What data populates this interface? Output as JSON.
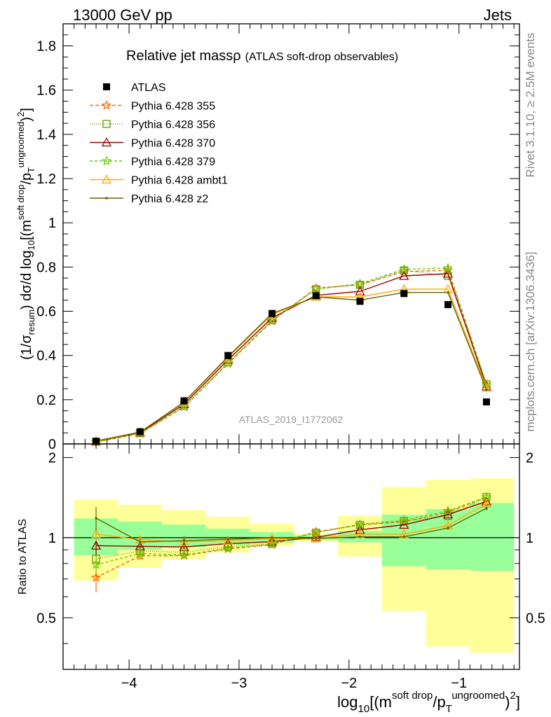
{
  "header": {
    "left": "13000 GeV pp",
    "right": "Jets"
  },
  "side_text": {
    "rivet": "Rivet 3.1.10, ≥ 2.5M events",
    "mcplots": "mcplots.cern.ch [arXiv:1306.3436]"
  },
  "chart_data": {
    "type": "line",
    "title": "Relative jet massρ",
    "title_suffix": "(ATLAS soft-drop observables)",
    "watermark": "ATLAS_2019_I1772062",
    "xlabel": "log10[(m^soft drop/pT^ungroomed)^2]",
    "xlabel_parts": {
      "base": "log",
      "sub": "10",
      "a": "[(m",
      "sup1": "soft drop",
      "b": "/p",
      "sub2": "T",
      "sup2": "ungroomed",
      "c": ")",
      "sup3": "2",
      "d": "]"
    },
    "ylabel_parts": {
      "a": "(1/σ",
      "sub1": "resum",
      "b": ") dσ/d log",
      "sub2": "10",
      "c": "[(m",
      "sup1": "soft drop",
      "d": "/p",
      "sub3": "T",
      "sup2": "ungroomed",
      "e": ")",
      "sup3": "2",
      "f": "]"
    },
    "ratio_ylabel": "Ratio to ATLAS",
    "xlim": [
      -4.6,
      -0.45
    ],
    "ylim": [
      0,
      1.9
    ],
    "ratio_ylim": [
      0.32,
      2.25
    ],
    "x_ticks": [
      -4,
      -3,
      -2,
      -1
    ],
    "x_tick_labels": [
      "−4",
      "−3",
      "−2",
      "−1"
    ],
    "y_ticks": [
      0,
      0.2,
      0.4,
      0.6,
      0.8,
      1,
      1.2,
      1.4,
      1.6,
      1.8
    ],
    "y_tick_labels": [
      "0",
      "0.2",
      "0.4",
      "0.6",
      "0.8",
      "1",
      "1.2",
      "1.4",
      "1.6",
      "1.8"
    ],
    "ratio_y_ticks": [
      0.5,
      1,
      2
    ],
    "ratio_y_tick_labels": [
      "0.5",
      "1",
      "2"
    ],
    "bin_edges": [
      -4.5,
      -4.1,
      -3.7,
      -3.3,
      -2.9,
      -2.5,
      -2.1,
      -1.7,
      -1.3,
      -0.9,
      -0.5
    ],
    "x": [
      -4.3,
      -3.9,
      -3.5,
      -3.1,
      -2.7,
      -2.3,
      -1.9,
      -1.5,
      -1.1,
      -0.75
    ],
    "data": {
      "name": "ATLAS",
      "values": [
        0.012,
        0.055,
        0.195,
        0.4,
        0.59,
        0.67,
        0.645,
        0.68,
        0.63,
        0.19
      ]
    },
    "band_inner": [
      [
        0.86,
        1.18
      ],
      [
        0.9,
        1.15
      ],
      [
        0.92,
        1.12
      ],
      [
        0.94,
        1.08
      ],
      [
        0.96,
        1.05
      ],
      [
        0.98,
        1.02
      ],
      [
        0.96,
        1.06
      ],
      [
        0.78,
        1.22
      ],
      [
        0.76,
        1.28
      ],
      [
        0.75,
        1.35
      ]
    ],
    "band_outer": [
      [
        0.69,
        1.39
      ],
      [
        0.77,
        1.33
      ],
      [
        0.83,
        1.27
      ],
      [
        0.88,
        1.2
      ],
      [
        0.93,
        1.13
      ],
      [
        0.97,
        1.04
      ],
      [
        0.85,
        1.21
      ],
      [
        0.53,
        1.55
      ],
      [
        0.39,
        1.65
      ],
      [
        0.37,
        1.67
      ]
    ],
    "colors": {
      "inner_band": "#99ff99",
      "outer_band": "#ffff99",
      "data": "#000000"
    },
    "series": [
      {
        "name": "Pythia 6.428 355",
        "color": "#ff6600",
        "dash": "5,3",
        "marker": "star",
        "values": [
          0.0085,
          0.047,
          0.167,
          0.363,
          0.555,
          0.705,
          0.72,
          0.78,
          0.785,
          0.27
        ],
        "ratio_err": [
          0.085,
          0.025,
          0.015,
          0.012,
          0.01,
          0.008,
          0.008,
          0.01,
          0.012,
          0.02
        ]
      },
      {
        "name": "Pythia 6.428 356",
        "color": "#669900",
        "dash": "1,2",
        "marker": "square",
        "values": [
          0.01,
          0.049,
          0.172,
          0.37,
          0.56,
          0.7,
          0.72,
          0.785,
          0.76,
          0.27
        ],
        "ratio_err": [
          0.05,
          0.025,
          0.015,
          0.012,
          0.01,
          0.008,
          0.008,
          0.01,
          0.012,
          0.02
        ]
      },
      {
        "name": "Pythia 6.428 370",
        "color": "#990000",
        "dash": "",
        "marker": "triangle",
        "values": [
          0.0112,
          0.051,
          0.18,
          0.38,
          0.57,
          0.672,
          0.69,
          0.76,
          0.77,
          0.26
        ],
        "ratio_err": [
          0.07,
          0.03,
          0.015,
          0.012,
          0.01,
          0.008,
          0.008,
          0.01,
          0.012,
          0.02
        ]
      },
      {
        "name": "Pythia 6.428 379",
        "color": "#66cc00",
        "dash": "4,3",
        "marker": "star",
        "values": [
          0.0095,
          0.048,
          0.168,
          0.365,
          0.558,
          0.7,
          0.725,
          0.79,
          0.795,
          0.27
        ],
        "ratio_err": [
          0.05,
          0.025,
          0.015,
          0.012,
          0.01,
          0.008,
          0.008,
          0.01,
          0.012,
          0.02
        ]
      },
      {
        "name": "Pythia 6.428 ambt1",
        "color": "#ffaa00",
        "dash": "",
        "marker": "triangle",
        "values": [
          0.0124,
          0.054,
          0.188,
          0.39,
          0.585,
          0.665,
          0.665,
          0.7,
          0.7,
          0.255
        ],
        "ratio_err": [
          0.06,
          0.03,
          0.015,
          0.012,
          0.01,
          0.008,
          0.008,
          0.01,
          0.012,
          0.02
        ]
      },
      {
        "name": "Pythia 6.428 z2",
        "color": "#666600",
        "dash": "",
        "marker": "dot",
        "values": [
          0.0142,
          0.053,
          0.19,
          0.395,
          0.59,
          0.665,
          0.65,
          0.685,
          0.685,
          0.245
        ],
        "ratio_err": [
          0.12,
          0.04,
          0.04,
          0.02,
          0.012,
          0.01,
          0.008,
          0.012,
          0.015,
          0.025
        ]
      }
    ]
  }
}
